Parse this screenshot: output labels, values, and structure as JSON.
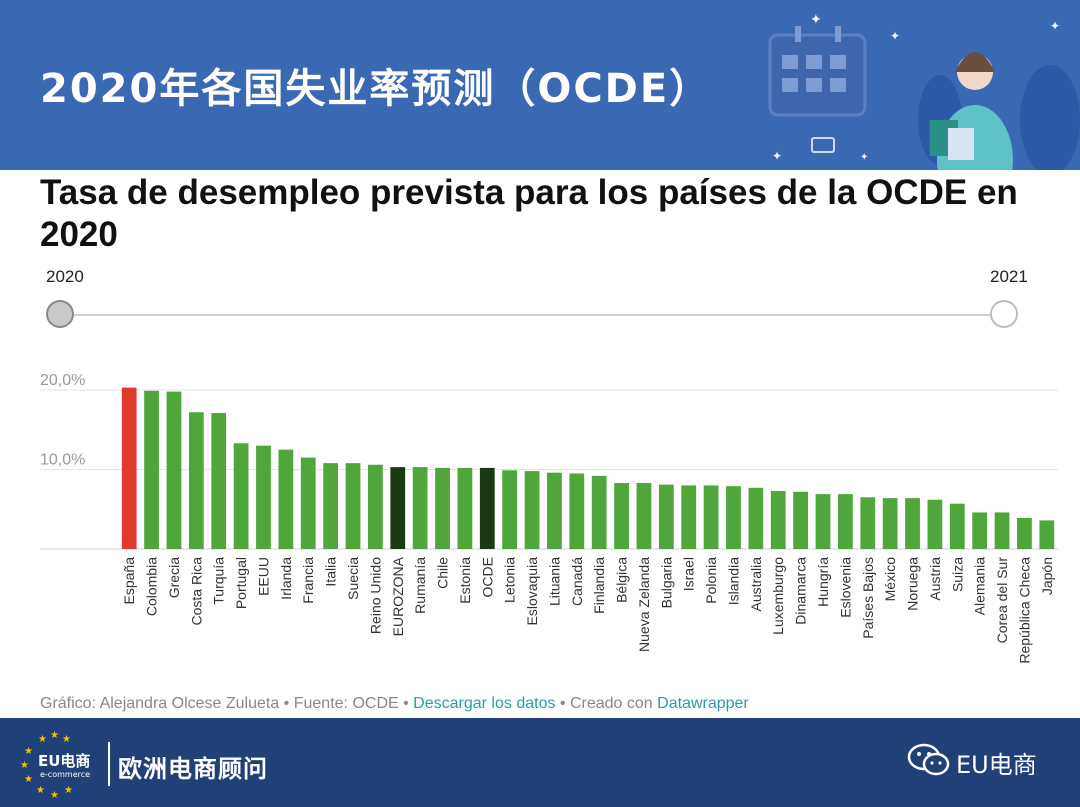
{
  "banner": {
    "title": "2020年各国失业率预测（OCDE）"
  },
  "chart_title": "Tasa de desempleo prevista para los países de la OCDE en 2020",
  "slider": {
    "start_label": "2020",
    "end_label": "2021",
    "selected": "2020"
  },
  "source": {
    "grafico": "Gráfico: Alejandra Olcese Zulueta",
    "sep1": " • ",
    "fuente": "Fuente: OCDE",
    "sep2": " • ",
    "download": "Descargar los datos",
    "sep3": " • ",
    "creado": "Creado con ",
    "tool": "Datawrapper"
  },
  "footer": {
    "logo_text": "EU电商",
    "logo_sub": "e-commerce",
    "name": "欧洲电商顾问",
    "brand": "EU电商"
  },
  "colors": {
    "banner": "#3a69b4",
    "footer": "#1f4177",
    "highlight": "#e03a2f",
    "bar": "#4fa63a",
    "aggregate": "#1b3a14"
  },
  "chart_data": {
    "type": "bar",
    "title": "Tasa de desempleo prevista para los países de la OCDE en 2020",
    "xlabel": "",
    "ylabel": "",
    "ylim": [
      0,
      21
    ],
    "yticks": [
      10,
      20
    ],
    "ytick_labels": [
      "10,0%",
      "20,0%"
    ],
    "grid": true,
    "categories": [
      "España",
      "Colombia",
      "Grecia",
      "Costa Rica",
      "Turquía",
      "Portugal",
      "EEUU",
      "Irlanda",
      "Francia",
      "Italia",
      "Suecia",
      "Reino Unido",
      "EUROZONA",
      "Rumanía",
      "Chile",
      "Estonia",
      "OCDE",
      "Letonia",
      "Eslovaquia",
      "Lituania",
      "Canadá",
      "Finlandia",
      "Bélgica",
      "Nueva Zelanda",
      "Bulgaria",
      "Israel",
      "Polonia",
      "Islandia",
      "Australia",
      "Luxemburgo",
      "Dinamarca",
      "Hungría",
      "Eslovenia",
      "Países Bajos",
      "México",
      "Noruega",
      "Austria",
      "Suiza",
      "Alemania",
      "Corea del Sur",
      "República Checa",
      "Japón"
    ],
    "values": [
      20.3,
      19.9,
      19.8,
      17.2,
      17.1,
      13.3,
      13.0,
      12.5,
      11.5,
      10.8,
      10.8,
      10.6,
      10.3,
      10.3,
      10.2,
      10.2,
      10.2,
      9.9,
      9.8,
      9.6,
      9.5,
      9.2,
      8.3,
      8.3,
      8.1,
      8.0,
      8.0,
      7.9,
      7.7,
      7.3,
      7.2,
      6.9,
      6.9,
      6.5,
      6.4,
      6.4,
      6.2,
      5.7,
      4.6,
      4.6,
      3.9,
      3.6
    ],
    "highlight": {
      "España": "red",
      "EUROZONA": "dark",
      "OCDE": "dark"
    }
  }
}
